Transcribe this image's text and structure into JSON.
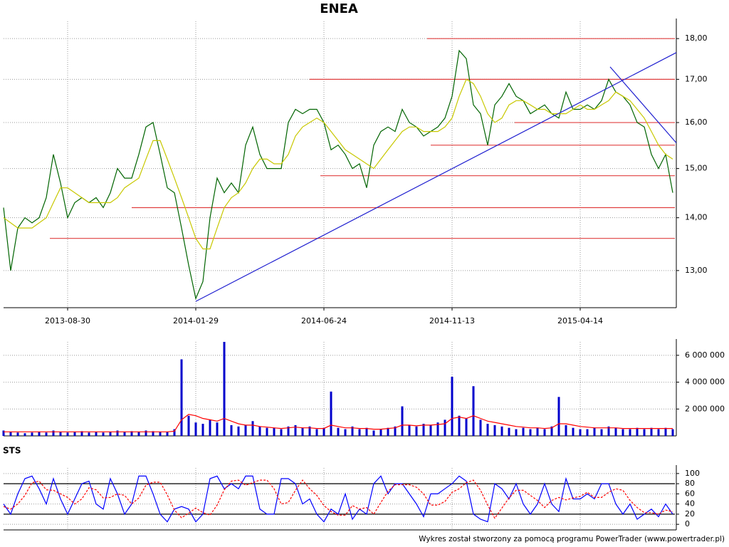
{
  "chart_data": [
    {
      "type": "line",
      "title": "ENEA",
      "log_scale": true,
      "grid": true,
      "categories": [
        null,
        null,
        null,
        null,
        null,
        null,
        null,
        null,
        null,
        "2013-08-30",
        null,
        null,
        null,
        null,
        null,
        null,
        null,
        null,
        null,
        null,
        null,
        null,
        null,
        null,
        null,
        null,
        null,
        "2014-01-29",
        null,
        null,
        null,
        null,
        null,
        null,
        null,
        null,
        null,
        null,
        null,
        null,
        null,
        null,
        null,
        null,
        null,
        "2014-06-24",
        null,
        null,
        null,
        null,
        null,
        null,
        null,
        null,
        null,
        null,
        null,
        null,
        null,
        null,
        null,
        null,
        null,
        "2014-11-13",
        null,
        null,
        null,
        null,
        null,
        null,
        null,
        null,
        null,
        null,
        null,
        null,
        null,
        null,
        null,
        null,
        null,
        "2015-04-14",
        null,
        null,
        null,
        null,
        null,
        null,
        null,
        null,
        null,
        null,
        null,
        null,
        null
      ],
      "series": [
        {
          "color": "#006400",
          "values": [
            14.2,
            13.0,
            13.8,
            14.0,
            13.9,
            14.0,
            14.4,
            15.3,
            14.7,
            14.0,
            14.3,
            14.4,
            14.3,
            14.4,
            14.2,
            14.5,
            15.0,
            14.8,
            14.8,
            15.3,
            15.9,
            16.0,
            15.3,
            14.6,
            14.5,
            13.8,
            13.1,
            12.5,
            12.8,
            14.0,
            14.8,
            14.5,
            14.7,
            14.5,
            15.5,
            15.9,
            15.3,
            15.0,
            15.0,
            15.0,
            16.0,
            16.3,
            16.2,
            16.3,
            16.3,
            16.0,
            15.4,
            15.5,
            15.3,
            15.0,
            15.1,
            14.6,
            15.5,
            15.8,
            15.9,
            15.8,
            16.3,
            16.0,
            15.9,
            15.7,
            15.8,
            15.9,
            16.1,
            16.6,
            17.7,
            17.5,
            16.4,
            16.2,
            15.5,
            16.4,
            16.6,
            16.9,
            16.6,
            16.5,
            16.2,
            16.3,
            16.4,
            16.2,
            16.1,
            16.7,
            16.3,
            16.3,
            16.4,
            16.3,
            16.5,
            17.0,
            16.7,
            16.6,
            16.4,
            16.0,
            15.9,
            15.3,
            15.0,
            15.3,
            14.5
          ]
        },
        {
          "color": "#c8c800",
          "values": [
            14.0,
            13.9,
            13.8,
            13.8,
            13.8,
            13.9,
            14.0,
            14.3,
            14.6,
            14.6,
            14.5,
            14.4,
            14.3,
            14.3,
            14.3,
            14.3,
            14.4,
            14.6,
            14.7,
            14.8,
            15.2,
            15.6,
            15.6,
            15.2,
            14.8,
            14.4,
            14.0,
            13.6,
            13.4,
            13.4,
            13.8,
            14.2,
            14.4,
            14.5,
            14.7,
            15.0,
            15.2,
            15.2,
            15.1,
            15.1,
            15.3,
            15.7,
            15.9,
            16.0,
            16.1,
            16.0,
            15.8,
            15.6,
            15.4,
            15.3,
            15.2,
            15.1,
            15.0,
            15.2,
            15.4,
            15.6,
            15.8,
            15.9,
            15.9,
            15.8,
            15.8,
            15.8,
            15.9,
            16.1,
            16.6,
            17.0,
            16.9,
            16.6,
            16.2,
            16.0,
            16.1,
            16.4,
            16.5,
            16.5,
            16.4,
            16.3,
            16.3,
            16.2,
            16.2,
            16.2,
            16.3,
            16.4,
            16.3,
            16.3,
            16.4,
            16.5,
            16.7,
            16.6,
            16.5,
            16.3,
            16.1,
            15.8,
            15.5,
            15.3,
            15.2
          ]
        }
      ],
      "ylim": [
        12.34,
        18.44
      ],
      "yticks": [
        {
          "value": 13,
          "label": "13,00"
        },
        {
          "value": 14,
          "label": "14,00"
        },
        {
          "value": 15,
          "label": "15,00"
        },
        {
          "value": 16,
          "label": "16,00"
        },
        {
          "value": 17,
          "label": "17,00"
        },
        {
          "value": 18,
          "label": "18,00"
        }
      ],
      "levels": [
        {
          "value": 18.0,
          "from": 59.5
        },
        {
          "value": 17.0,
          "from": 43
        },
        {
          "value": 16.0,
          "from": 71.8
        },
        {
          "value": 15.5,
          "from": 60
        },
        {
          "value": 14.85,
          "from": 44.5
        },
        {
          "value": 14.2,
          "from": 18
        },
        {
          "value": 13.6,
          "from": 6.5
        }
      ],
      "level_color": "#e04040",
      "trendlines": [
        {
          "x": [
            27,
            94.5
          ],
          "y": [
            12.45,
            17.65
          ]
        },
        {
          "x": [
            85.2,
            94.5
          ],
          "y": [
            17.3,
            15.55
          ]
        }
      ],
      "trend_color": "#2020d0"
    },
    {
      "type": "bar",
      "grid": true,
      "color": "#0000cc",
      "values": [
        400000,
        300000,
        250000,
        200000,
        250000,
        300000,
        250000,
        400000,
        300000,
        250000,
        300000,
        350000,
        250000,
        300000,
        250000,
        300000,
        400000,
        300000,
        350000,
        300000,
        400000,
        350000,
        300000,
        300000,
        500000,
        5700000,
        1500000,
        1000000,
        900000,
        1200000,
        1000000,
        7000000,
        800000,
        700000,
        800000,
        1100000,
        700000,
        600000,
        600000,
        500000,
        700000,
        800000,
        600000,
        700000,
        500000,
        600000,
        3300000,
        600000,
        500000,
        700000,
        500000,
        600000,
        400000,
        500000,
        600000,
        700000,
        2200000,
        800000,
        700000,
        900000,
        800000,
        1000000,
        1200000,
        4400000,
        1500000,
        1300000,
        3700000,
        1200000,
        900000,
        800000,
        700000,
        600000,
        500000,
        600000,
        500000,
        600000,
        500000,
        700000,
        2900000,
        800000,
        600000,
        500000,
        500000,
        600000,
        500000,
        700000,
        600000,
        500000,
        500000,
        600000,
        500000,
        600000,
        500000,
        600000,
        500000
      ],
      "series": [
        {
          "color": "#ff0000",
          "values": [
            300000,
            300000,
            300000,
            300000,
            300000,
            300000,
            300000,
            300000,
            300000,
            300000,
            300000,
            300000,
            300000,
            300000,
            300000,
            300000,
            300000,
            300000,
            300000,
            300000,
            300000,
            300000,
            300000,
            300000,
            350000,
            1200000,
            1600000,
            1500000,
            1300000,
            1200000,
            1100000,
            1300000,
            1100000,
            900000,
            800000,
            800000,
            700000,
            650000,
            600000,
            550000,
            600000,
            650000,
            600000,
            600000,
            550000,
            550000,
            800000,
            700000,
            600000,
            600000,
            550000,
            550000,
            500000,
            500000,
            550000,
            600000,
            800000,
            800000,
            750000,
            800000,
            800000,
            850000,
            900000,
            1300000,
            1400000,
            1300000,
            1500000,
            1300000,
            1100000,
            1000000,
            900000,
            800000,
            700000,
            650000,
            600000,
            600000,
            550000,
            600000,
            900000,
            900000,
            800000,
            700000,
            650000,
            600000,
            600000,
            600000,
            600000,
            550000,
            550000,
            550000,
            550000,
            550000,
            550000,
            550000,
            550000
          ]
        }
      ],
      "ylim": [
        0,
        7000000
      ],
      "yticks": [
        {
          "value": 2000000,
          "label": "2 000 000"
        },
        {
          "value": 4000000,
          "label": "4 000 000"
        },
        {
          "value": 6000000,
          "label": "6 000 000"
        }
      ]
    },
    {
      "type": "line",
      "title": "STS",
      "grid": true,
      "series": [
        {
          "color": "#0000ff",
          "values": [
            40,
            20,
            60,
            90,
            95,
            70,
            40,
            90,
            50,
            20,
            50,
            80,
            85,
            40,
            30,
            90,
            60,
            20,
            40,
            95,
            95,
            60,
            20,
            5,
            30,
            35,
            30,
            5,
            20,
            90,
            95,
            70,
            80,
            70,
            95,
            95,
            30,
            20,
            20,
            90,
            90,
            80,
            40,
            50,
            20,
            5,
            30,
            20,
            60,
            10,
            30,
            20,
            80,
            95,
            60,
            80,
            80,
            60,
            40,
            15,
            60,
            60,
            70,
            80,
            95,
            85,
            20,
            10,
            5,
            80,
            70,
            50,
            80,
            40,
            20,
            40,
            80,
            40,
            25,
            90,
            50,
            50,
            60,
            50,
            80,
            80,
            40,
            20,
            40,
            10,
            20,
            30,
            15,
            40,
            20
          ]
        },
        {
          "color": "#ff0000",
          "dashed": true,
          "values": [
            35,
            30,
            40,
            57,
            82,
            85,
            68,
            67,
            60,
            53,
            40,
            50,
            72,
            68,
            52,
            53,
            60,
            57,
            40,
            52,
            77,
            83,
            83,
            58,
            28,
            13,
            22,
            32,
            23,
            18,
            38,
            68,
            85,
            87,
            77,
            82,
            87,
            87,
            70,
            40,
            43,
            67,
            87,
            70,
            57,
            37,
            25,
            18,
            18,
            37,
            30,
            33,
            20,
            43,
            65,
            78,
            78,
            78,
            73,
            60,
            38,
            38,
            45,
            63,
            70,
            82,
            87,
            67,
            38,
            12,
            32,
            52,
            67,
            67,
            57,
            47,
            33,
            47,
            53,
            48,
            52,
            55,
            63,
            53,
            53,
            63,
            70,
            67,
            47,
            33,
            23,
            23,
            20,
            28,
            25
          ]
        }
      ],
      "ylim": [
        -11,
        111
      ],
      "yticks": [
        0,
        20,
        40,
        60,
        80,
        100
      ],
      "levels": [
        {
          "value": 20
        },
        {
          "value": 80
        }
      ],
      "level_color": "#000000"
    }
  ],
  "footer": "Wykres został stworzony za pomocą programu PowerTrader (www.powertrader.pl)"
}
